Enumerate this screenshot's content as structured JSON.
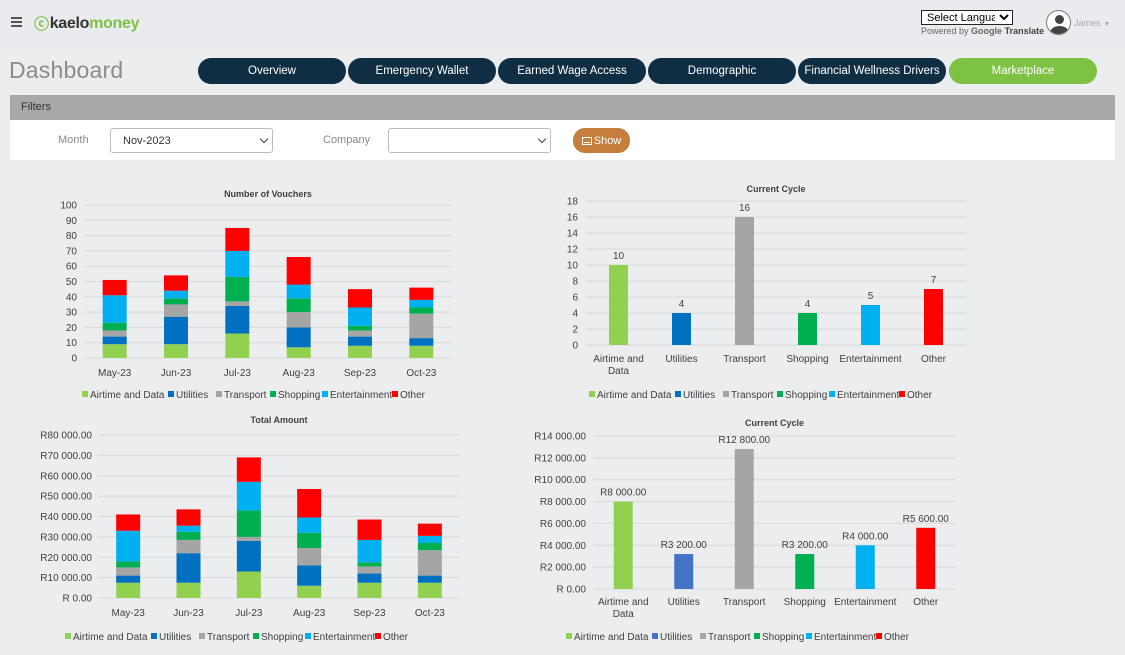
{
  "header": {
    "logo_prefix": "kaelo",
    "logo_suffix": "money",
    "language_select": "Select Language",
    "powered_by": "Powered by",
    "google": "Google",
    "translate": "Translate",
    "user_name": "James"
  },
  "page": {
    "title": "Dashboard"
  },
  "tabs": [
    {
      "label": "Overview"
    },
    {
      "label": "Emergency Wallet"
    },
    {
      "label": "Earned Wage Access"
    },
    {
      "label": "Demographic"
    },
    {
      "label": "Financial Wellness Drivers"
    },
    {
      "label": "Marketplace"
    }
  ],
  "filters": {
    "heading": "Filters",
    "month_label": "Month",
    "month_value": "Nov-2023",
    "company_label": "Company",
    "company_value": "",
    "show_label": "Show"
  },
  "colors": {
    "Airtime and Data": "#92d050",
    "Utilities": "#0070c0",
    "Transport": "#a5a5a5",
    "Shopping": "#00b050",
    "Entertainment": "#00b0f0",
    "Other": "#ff0000",
    "Utilities_alt": "#4472c4"
  },
  "chart_data": [
    {
      "id": "vouchers",
      "type": "bar",
      "stacked": true,
      "title": "Number of Vouchers",
      "categories": [
        "May-23",
        "Jun-23",
        "Jul-23",
        "Aug-23",
        "Sep-23",
        "Oct-23"
      ],
      "ylim": [
        0,
        100
      ],
      "yticks": [
        "0",
        "10",
        "20",
        "30",
        "40",
        "50",
        "60",
        "70",
        "80",
        "90",
        "100"
      ],
      "series": [
        {
          "name": "Airtime and Data",
          "values": [
            9,
            9,
            16,
            7,
            8,
            8
          ]
        },
        {
          "name": "Utilities",
          "values": [
            5,
            18,
            18,
            13,
            6,
            5
          ]
        },
        {
          "name": "Transport",
          "values": [
            4,
            8,
            3,
            10,
            4,
            16
          ]
        },
        {
          "name": "Shopping",
          "values": [
            5,
            4,
            16,
            9,
            3,
            4
          ]
        },
        {
          "name": "Entertainment",
          "values": [
            18,
            5,
            17,
            9,
            12,
            5
          ]
        },
        {
          "name": "Other",
          "values": [
            10,
            10,
            15,
            18,
            12,
            8
          ]
        }
      ],
      "legend": [
        "Airtime and Data",
        "Utilities",
        "Transport",
        "Shopping",
        "Entertainment",
        "Other"
      ]
    },
    {
      "id": "cycle_vouchers",
      "type": "bar",
      "title": "Current Cycle",
      "categories": [
        "Airtime and Data",
        "Utilities",
        "Transport",
        "Shopping",
        "Entertainment",
        "Other"
      ],
      "values": [
        10,
        4,
        16,
        4,
        5,
        7
      ],
      "data_labels": [
        "10",
        "4",
        "16",
        "4",
        "5",
        "7"
      ],
      "ylim": [
        0,
        18
      ],
      "yticks": [
        "0",
        "2",
        "4",
        "6",
        "8",
        "10",
        "12",
        "14",
        "16",
        "18"
      ],
      "legend": [
        "Airtime and Data",
        "Utilities",
        "Transport",
        "Shopping",
        "Entertainment",
        "Other"
      ]
    },
    {
      "id": "amount",
      "type": "bar",
      "stacked": true,
      "title": "Total Amount",
      "categories": [
        "May-23",
        "Jun-23",
        "Jul-23",
        "Aug-23",
        "Sep-23",
        "Oct-23"
      ],
      "ylim": [
        0,
        80000
      ],
      "yticks": [
        "R 0.00",
        "R10 000.00",
        "R20 000.00",
        "R30 000.00",
        "R40 000.00",
        "R50 000.00",
        "R60 000.00",
        "R70 000.00",
        "R80 000.00"
      ],
      "series": [
        {
          "name": "Airtime and Data",
          "values": [
            7500,
            7500,
            13000,
            6000,
            7500,
            7500
          ]
        },
        {
          "name": "Utilities",
          "values": [
            3500,
            14500,
            15000,
            10000,
            4500,
            3500
          ]
        },
        {
          "name": "Transport",
          "values": [
            4000,
            6500,
            2000,
            8500,
            3500,
            12500
          ]
        },
        {
          "name": "Shopping",
          "values": [
            3000,
            4000,
            13000,
            7500,
            2000,
            3500
          ]
        },
        {
          "name": "Entertainment",
          "values": [
            15000,
            3000,
            14000,
            7500,
            11000,
            3500
          ]
        },
        {
          "name": "Other",
          "values": [
            8000,
            8000,
            12000,
            14000,
            10000,
            6000
          ]
        }
      ],
      "legend": [
        "Airtime and Data",
        "Utilities",
        "Transport",
        "Shopping",
        "Entertainment",
        "Other"
      ]
    },
    {
      "id": "cycle_amount",
      "type": "bar",
      "title": "Current Cycle",
      "categories": [
        "Airtime and Data",
        "Utilities",
        "Transport",
        "Shopping",
        "Entertainment",
        "Other"
      ],
      "values": [
        8000,
        3200,
        12800,
        3200,
        4000,
        5600
      ],
      "data_labels": [
        "R8 000.00",
        "R3 200.00",
        "R12 800.00",
        "R3 200.00",
        "R4 000.00",
        "R5 600.00"
      ],
      "ylim": [
        0,
        14000
      ],
      "yticks": [
        "R 0.00",
        "R2 000.00",
        "R4 000.00",
        "R6 000.00",
        "R8 000.00",
        "R10 000.00",
        "R12 000.00",
        "R14 000.00"
      ],
      "legend": [
        "Airtime and Data",
        "Utilities",
        "Transport",
        "Shopping",
        "Entertainment",
        "Other"
      ]
    }
  ]
}
